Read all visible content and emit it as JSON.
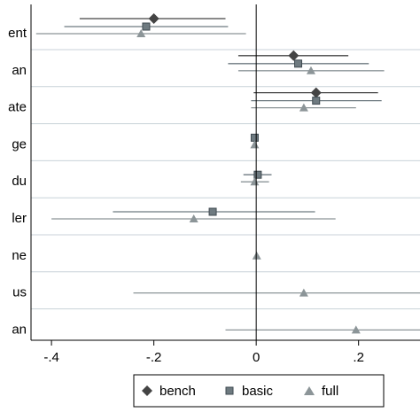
{
  "chart_data": {
    "type": "scatter",
    "subtype": "coefficient-plot",
    "title": "",
    "xlabel": "",
    "ylabel": "",
    "xlim": [
      -0.44,
      0.32
    ],
    "xticks": [
      -0.4,
      -0.2,
      0,
      0.2
    ],
    "xtick_labels": [
      "-.4",
      "-.2",
      "0",
      ".2"
    ],
    "reference_line": 0,
    "grid": "horizontal separators",
    "legend_placement": "bottom",
    "rows": [
      {
        "label": "ent"
      },
      {
        "label": "an"
      },
      {
        "label": "ate"
      },
      {
        "label": "ge"
      },
      {
        "label": "du"
      },
      {
        "label": "ler"
      },
      {
        "label": "ne"
      },
      {
        "label": "us"
      },
      {
        "label": "an"
      }
    ],
    "series": [
      {
        "name": "bench",
        "marker": "diamond",
        "color": "#444444",
        "points": [
          {
            "row": 0,
            "estimate": -0.2,
            "lo": -0.345,
            "hi": -0.06
          },
          {
            "row": 1,
            "estimate": 0.073,
            "lo": -0.035,
            "hi": 0.18
          },
          {
            "row": 2,
            "estimate": 0.117,
            "lo": -0.005,
            "hi": 0.238
          }
        ]
      },
      {
        "name": "basic",
        "marker": "square",
        "color": "#6e7a80",
        "points": [
          {
            "row": 0,
            "estimate": -0.215,
            "lo": -0.375,
            "hi": -0.055
          },
          {
            "row": 1,
            "estimate": 0.082,
            "lo": -0.055,
            "hi": 0.22
          },
          {
            "row": 2,
            "estimate": 0.117,
            "lo": -0.01,
            "hi": 0.245
          },
          {
            "row": 3,
            "estimate": -0.003,
            "lo": -0.003,
            "hi": -0.003
          },
          {
            "row": 4,
            "estimate": 0.003,
            "lo": -0.025,
            "hi": 0.03
          },
          {
            "row": 5,
            "estimate": -0.085,
            "lo": -0.28,
            "hi": 0.115
          }
        ]
      },
      {
        "name": "full",
        "marker": "triangle",
        "color": "#8c9598",
        "points": [
          {
            "row": 0,
            "estimate": -0.225,
            "lo": -0.43,
            "hi": -0.02
          },
          {
            "row": 1,
            "estimate": 0.107,
            "lo": -0.035,
            "hi": 0.25
          },
          {
            "row": 2,
            "estimate": 0.093,
            "lo": -0.01,
            "hi": 0.195
          },
          {
            "row": 3,
            "estimate": -0.003,
            "lo": -0.003,
            "hi": -0.003
          },
          {
            "row": 4,
            "estimate": -0.003,
            "lo": -0.03,
            "hi": 0.025
          },
          {
            "row": 5,
            "estimate": -0.122,
            "lo": -0.4,
            "hi": 0.155
          },
          {
            "row": 6,
            "estimate": 0.001,
            "lo": 0.001,
            "hi": 0.001
          },
          {
            "row": 7,
            "estimate": 0.093,
            "lo": -0.24,
            "hi": 0.34
          },
          {
            "row": 8,
            "estimate": 0.195,
            "lo": -0.06,
            "hi": 0.34
          }
        ]
      }
    ]
  }
}
